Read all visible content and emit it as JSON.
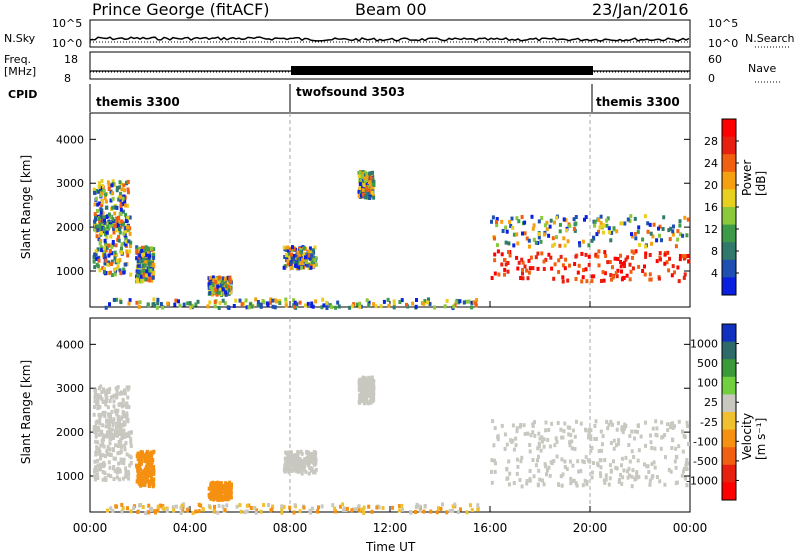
{
  "header": {
    "station": "Prince George (fitACF)",
    "beam": "Beam 00",
    "date": "23/Jan/2016"
  },
  "strip": {
    "nsky_label": "N.Sky",
    "nsky_ticks": [
      "10^5",
      "10^0"
    ],
    "nsearch_label": "N.Search",
    "nsearch_ticks": [
      "10^5",
      "10^0"
    ],
    "freq_label": "Freq.",
    "freq_unit": "[MHz]",
    "freq_ticks": [
      "18",
      "8"
    ],
    "nave_label": "Nave",
    "nave_ticks": [
      "60",
      "0"
    ],
    "cpid_label": "CPID",
    "cpid_segments": [
      {
        "name": "themis 3300",
        "start_hour": 0
      },
      {
        "name": "twofsound 3503",
        "start_hour": 8
      },
      {
        "name": "themis 3300",
        "start_hour": 20
      }
    ]
  },
  "chart_data": [
    {
      "type": "heatmap",
      "title": "Power",
      "ylabel": "Slant Range [km]",
      "xlabel": "Time UT",
      "x_ticks": [
        "00:00",
        "04:00",
        "08:00",
        "12:00",
        "16:00",
        "20:00",
        "00:00"
      ],
      "x_range_hours": [
        0,
        24
      ],
      "ylim": [
        180,
        4600
      ],
      "y_ticks": [
        1000,
        2000,
        3000,
        4000
      ],
      "colorbar_label": "Power [dB]",
      "colorbar_ticks": [
        "4",
        "8",
        "12",
        "16",
        "20",
        "24",
        "28"
      ],
      "colorbar_range": [
        0,
        32
      ],
      "colors": [
        "#0a20e0",
        "#1f4fb0",
        "#2f7a6a",
        "#3d9a48",
        "#8cc83c",
        "#e8d020",
        "#f5a010",
        "#f06010",
        "#e82010",
        "#ff0000"
      ]
    },
    {
      "type": "heatmap",
      "title": "Velocity",
      "ylabel": "Slant Range [km]",
      "xlabel": "Time UT",
      "x_ticks": [
        "00:00",
        "04:00",
        "08:00",
        "12:00",
        "16:00",
        "20:00",
        "00:00"
      ],
      "x_range_hours": [
        0,
        24
      ],
      "ylim": [
        180,
        4600
      ],
      "y_ticks": [
        1000,
        2000,
        3000,
        4000
      ],
      "colorbar_label": "Velocity [m s⁻¹]",
      "colorbar_ticks": [
        "1000",
        "500",
        "100",
        "25",
        "-25",
        "-100",
        "-500",
        "-1000"
      ],
      "colors": [
        "#1030c0",
        "#2e6a6a",
        "#3a9a3a",
        "#70d040",
        "#c8c8c0",
        "#f0c030",
        "#f59010",
        "#f06010",
        "#e82010",
        "#ff0000"
      ]
    }
  ]
}
